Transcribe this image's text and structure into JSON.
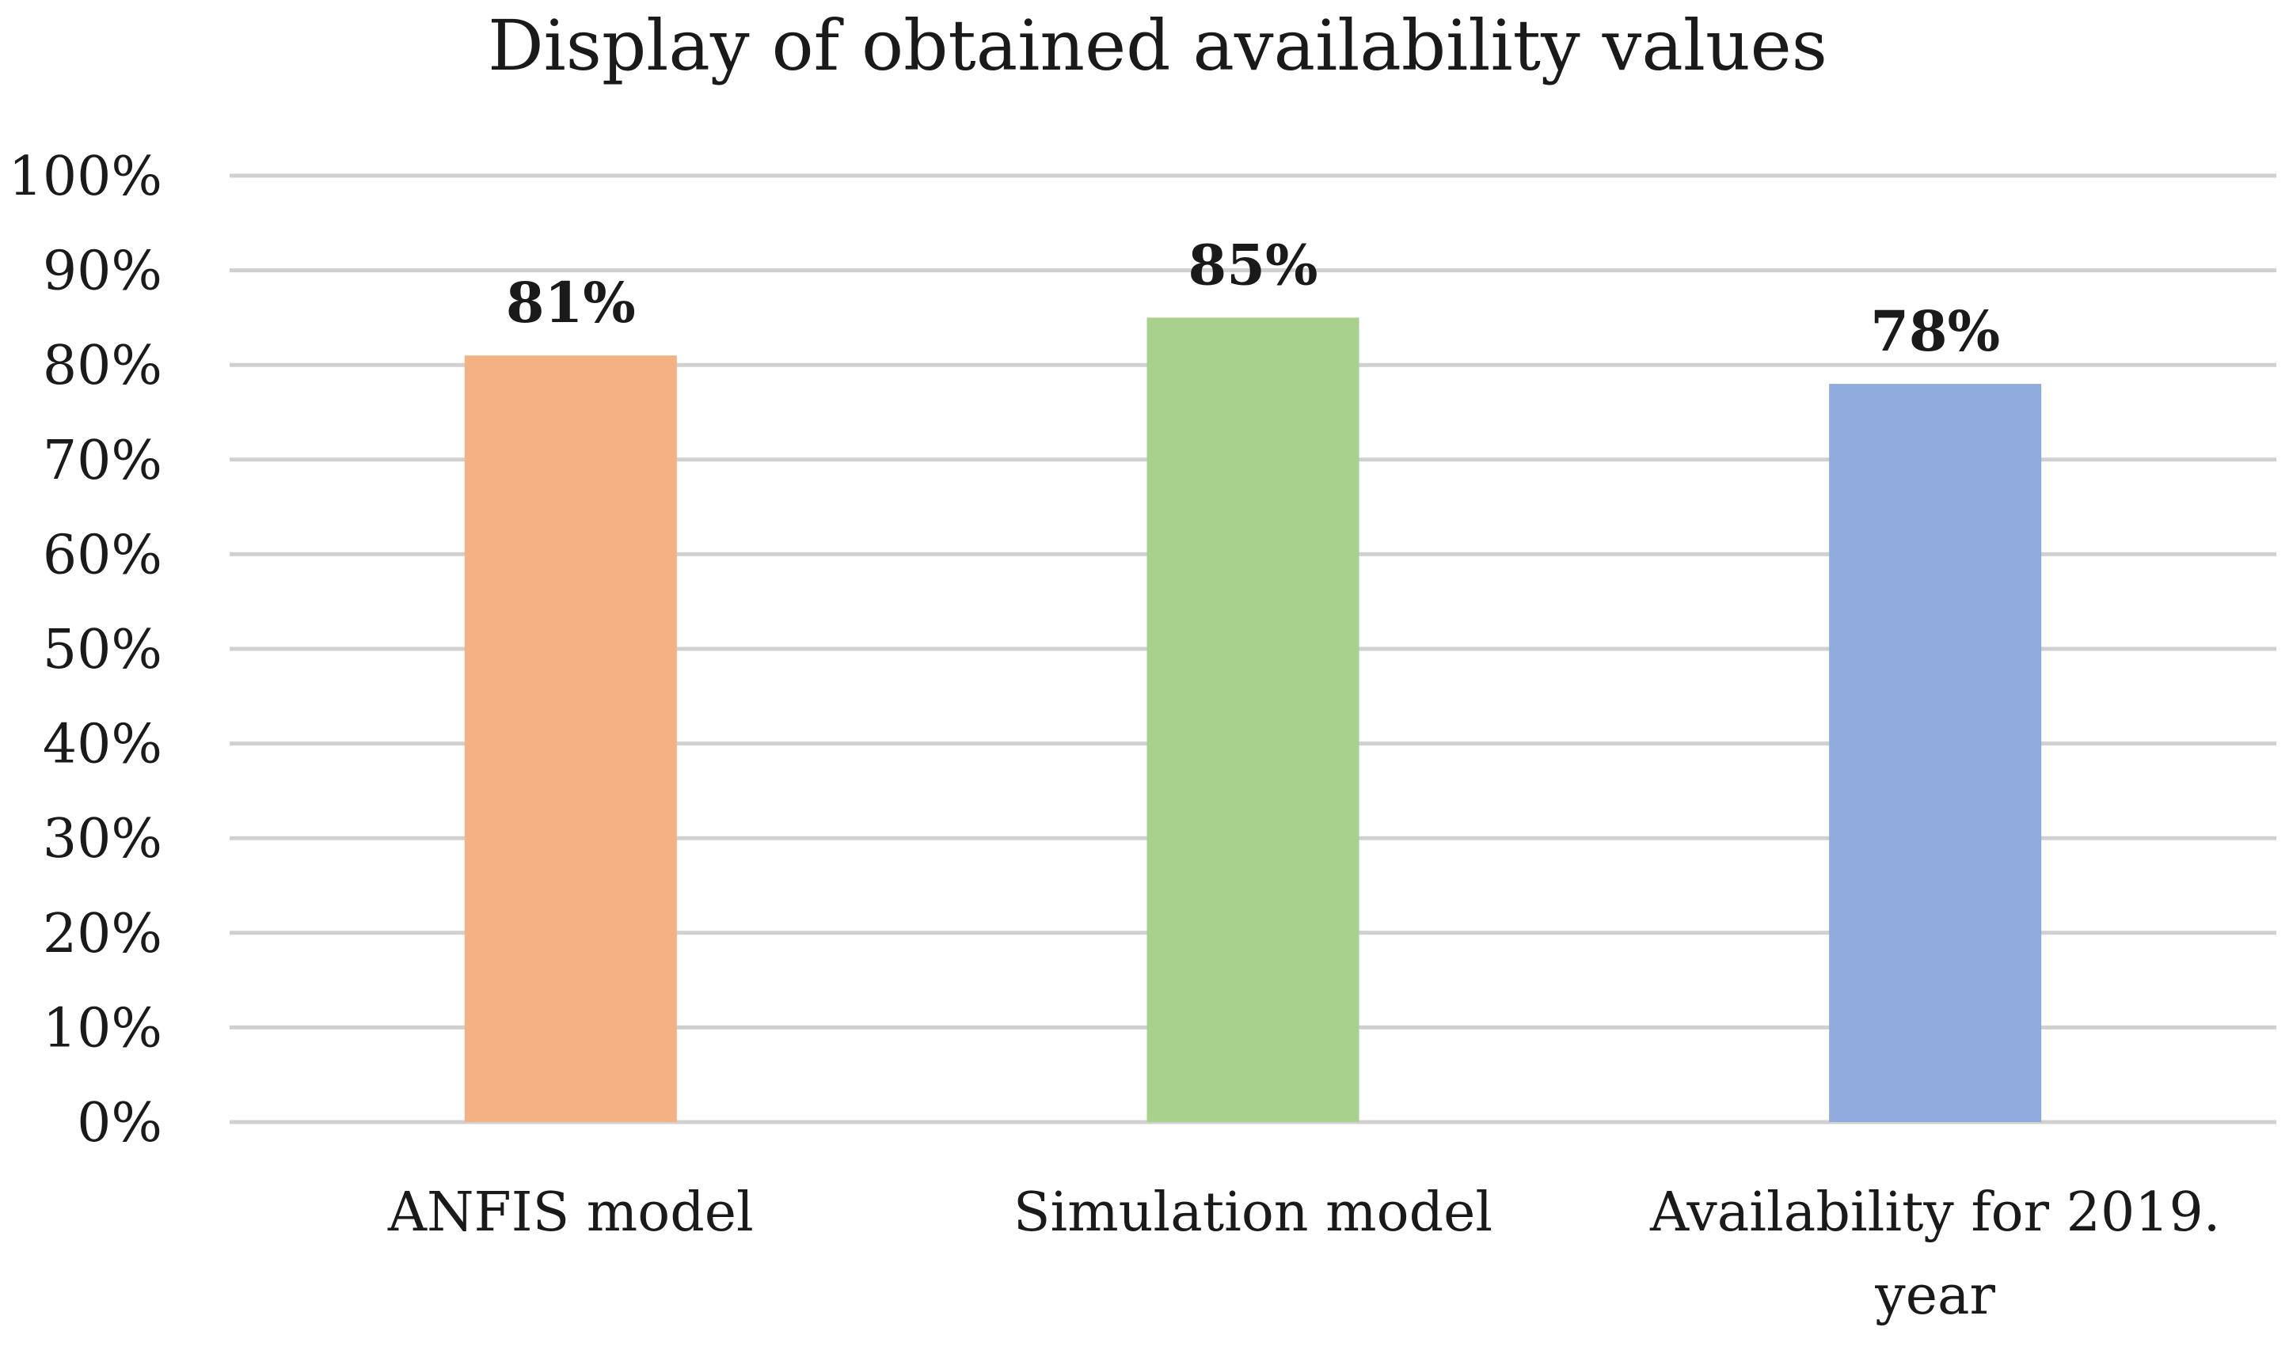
{
  "chart_data": {
    "type": "bar",
    "title": "Display of obtained availability values",
    "xlabel": "",
    "ylabel": "",
    "categories": [
      [
        "ANFIS model"
      ],
      [
        "Simulation model"
      ],
      [
        "Availability for 2019.",
        "year"
      ]
    ],
    "values": [
      81,
      85,
      78
    ],
    "data_labels": [
      "81%",
      "85%",
      "78%"
    ],
    "bar_colors": [
      "#F4B183",
      "#A9D18E",
      "#8FAADC"
    ],
    "ylim": [
      0,
      100
    ],
    "y_ticks": [
      0,
      10,
      20,
      30,
      40,
      50,
      60,
      70,
      80,
      90,
      100
    ],
    "y_tick_labels": [
      "0%",
      "10%",
      "20%",
      "30%",
      "40%",
      "50%",
      "60%",
      "70%",
      "80%",
      "90%",
      "100%"
    ],
    "grid": true,
    "legend": "none"
  }
}
